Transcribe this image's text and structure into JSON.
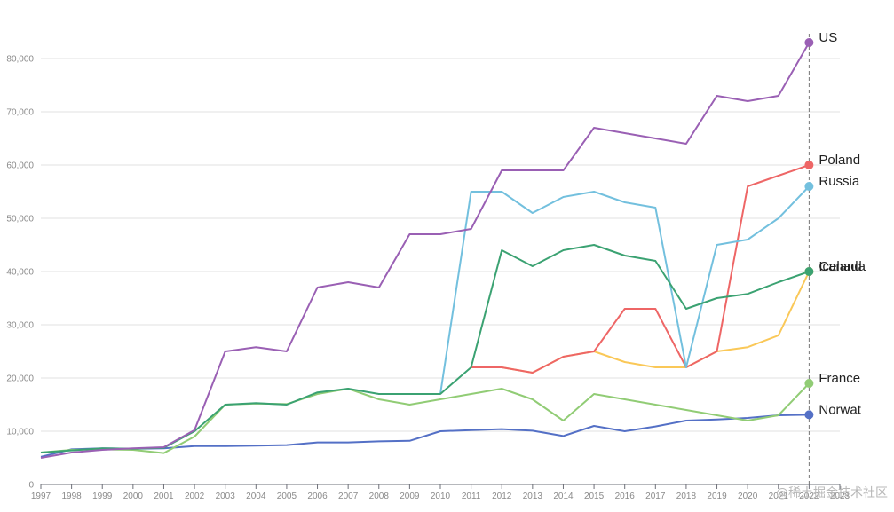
{
  "chart_data": {
    "type": "line",
    "x": [
      1997,
      1998,
      1999,
      2000,
      2001,
      2002,
      2003,
      2004,
      2005,
      2006,
      2007,
      2008,
      2009,
      2010,
      2011,
      2012,
      2013,
      2014,
      2015,
      2016,
      2017,
      2018,
      2019,
      2020,
      2021,
      2022
    ],
    "x_tick_labels": [
      "1997",
      "1998",
      "1999",
      "2000",
      "2001",
      "2002",
      "2003",
      "2004",
      "2005",
      "2006",
      "2007",
      "2008",
      "2009",
      "2010",
      "2011",
      "2012",
      "2013",
      "2014",
      "2015",
      "2016",
      "2017",
      "2018",
      "2019",
      "2020",
      "2021",
      "2022",
      "2023"
    ],
    "y_ticks": [
      0,
      10000,
      20000,
      30000,
      40000,
      50000,
      60000,
      70000,
      80000
    ],
    "y_tick_labels": [
      "0",
      "10,000",
      "20,000",
      "30,000",
      "40,000",
      "50,000",
      "60,000",
      "70,000",
      "80,000"
    ],
    "ylim": [
      0,
      88000
    ],
    "xlim": [
      1997,
      2023
    ],
    "grid": true,
    "marker_line_x": 2022,
    "series": [
      {
        "name": "Norwat",
        "color": "#5470c6",
        "values": [
          5200,
          6600,
          6800,
          6700,
          6800,
          7200,
          7200,
          7300,
          7400,
          7900,
          7900,
          8100,
          8200,
          10000,
          10200,
          10400,
          10100,
          9100,
          11000,
          10000,
          10900,
          12000,
          12200,
          12500,
          13000,
          13100
        ]
      },
      {
        "name": "France",
        "color": "#91cc75",
        "values": [
          6000,
          6500,
          6600,
          6500,
          5900,
          9000,
          15000,
          15200,
          15100,
          17000,
          18000,
          16000,
          15000,
          16000,
          17000,
          18000,
          16000,
          12000,
          17000,
          16000,
          15000,
          14000,
          13000,
          12000,
          13000,
          19000
        ]
      },
      {
        "name": "Iceland",
        "color": "#fac858",
        "values": [
          null,
          null,
          null,
          null,
          null,
          null,
          null,
          null,
          null,
          null,
          null,
          null,
          null,
          null,
          22000,
          22000,
          21000,
          24000,
          25000,
          23000,
          22000,
          22000,
          25000,
          25800,
          28000,
          40000
        ]
      },
      {
        "name": "Poland",
        "color": "#ee6666",
        "values": [
          null,
          null,
          null,
          null,
          null,
          null,
          null,
          null,
          null,
          null,
          null,
          null,
          null,
          null,
          22000,
          22000,
          21000,
          24000,
          25000,
          33000,
          33000,
          22000,
          25000,
          56000,
          58000,
          60000
        ]
      },
      {
        "name": "Russia",
        "color": "#73c0de",
        "values": [
          null,
          null,
          null,
          null,
          null,
          null,
          null,
          null,
          null,
          null,
          null,
          null,
          null,
          17000,
          55000,
          55000,
          51000,
          54000,
          55000,
          53000,
          52000,
          22000,
          45000,
          46000,
          50000,
          56000
        ]
      },
      {
        "name": "Canada",
        "color": "#3ba272",
        "values": [
          6000,
          6400,
          6800,
          6700,
          6900,
          10000,
          15000,
          15300,
          15000,
          17300,
          18000,
          17000,
          17000,
          17000,
          22000,
          44000,
          41000,
          44000,
          45000,
          43000,
          42000,
          33000,
          35000,
          35800,
          38000,
          40000
        ]
      },
      {
        "name": "US",
        "color": "#9a60b4",
        "values": [
          5000,
          6000,
          6500,
          6800,
          7000,
          10200,
          25000,
          25800,
          25000,
          37000,
          38000,
          37000,
          47000,
          47000,
          48000,
          59000,
          59000,
          59000,
          67000,
          66000,
          65000,
          64000,
          73000,
          72000,
          73000,
          83000
        ]
      }
    ]
  },
  "watermark": "@稀土掘金技术社区",
  "colors": {
    "grid": "#e0e0e0",
    "axis": "#6e7079",
    "marker_line": "#777777"
  }
}
